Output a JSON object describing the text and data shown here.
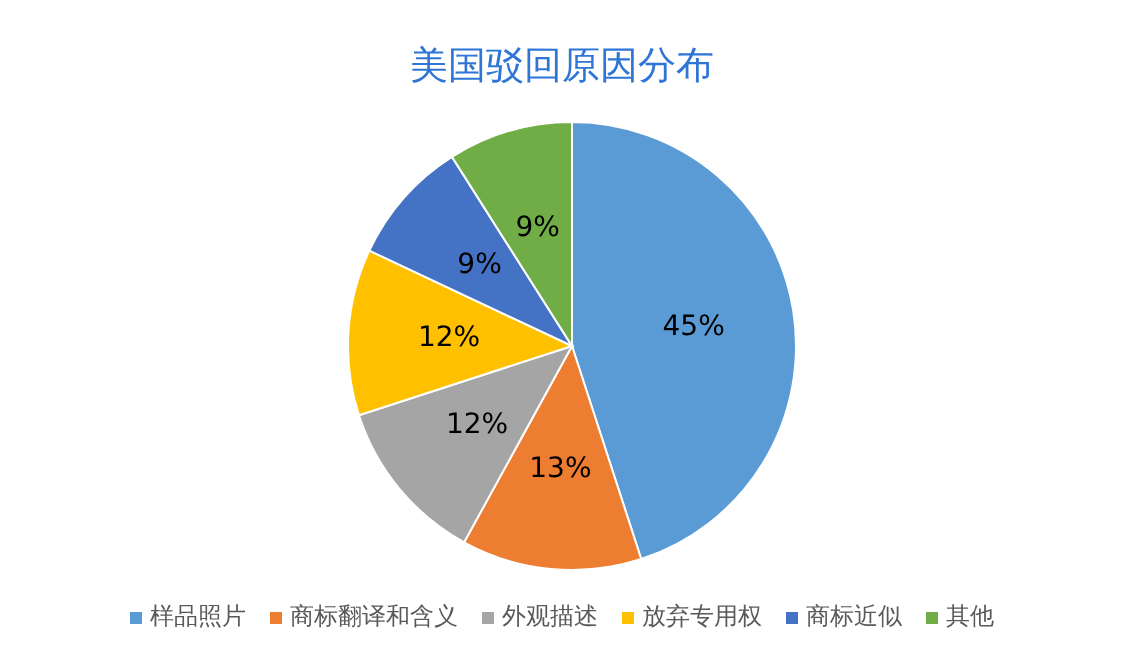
{
  "chart_data": {
    "type": "pie",
    "title": "美国驳回原因分布",
    "categories": [
      "样品照片",
      "商标翻译和含义",
      "外观描述",
      "放弃专用权",
      "商标近似",
      "其他"
    ],
    "values": [
      45,
      13,
      12,
      12,
      9,
      9
    ],
    "colors": [
      "#5b9bd5",
      "#ed7d31",
      "#a5a5a5",
      "#ffc000",
      "#4472c4",
      "#70ad47"
    ],
    "value_labels": [
      "45%",
      "13%",
      "12%",
      "12%",
      "9%",
      "9%"
    ],
    "legend": "bottom"
  }
}
